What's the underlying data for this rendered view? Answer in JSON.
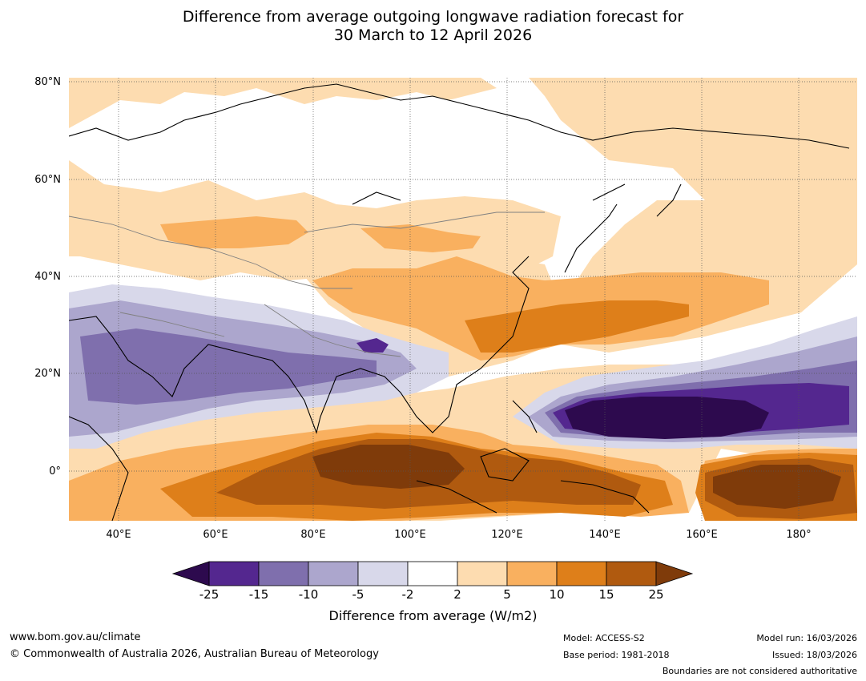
{
  "title": {
    "line1": "Difference from average outgoing longwave radiation forecast for",
    "line2": "30 March to 12 April 2026"
  },
  "map": {
    "lat_labels": [
      "80°N",
      "60°N",
      "40°N",
      "20°N",
      "0°"
    ],
    "lon_labels": [
      "40°E",
      "60°E",
      "80°E",
      "100°E",
      "120°E",
      "140°E",
      "160°E",
      "180°"
    ],
    "extent": {
      "lon_min": 30,
      "lon_max": 192,
      "lat_min": -10,
      "lat_max": 80
    }
  },
  "colorbar": {
    "title": "Difference from average (W/m2)",
    "ticks": [
      "-25",
      "-15",
      "-10",
      "-5",
      "-2",
      "2",
      "5",
      "10",
      "15",
      "25"
    ],
    "colors": {
      "lt_m25": "#2d0a4e",
      "m25_m15": "#54278f",
      "m15_m10": "#7f6fad",
      "m10_m5": "#aca6cd",
      "m5_m2": "#d8d8ea",
      "m2_2": "#ffffff",
      "p2_5": "#fddcb0",
      "p5_10": "#f9b05f",
      "p10_15": "#de7f1a",
      "p15_25": "#b05a0f",
      "gt_25": "#7f3b0a"
    }
  },
  "footer": {
    "website": "www.bom.gov.au/climate",
    "copyright": "© Commonwealth of Australia 2026, Australian Bureau of Meteorology",
    "model": "Model: ACCESS-S2",
    "base_period": "Base period: 1981-2018",
    "model_run": "Model run: 16/03/2026",
    "issued": "Issued: 18/03/2026",
    "disclaimer": "Boundaries are not considered authoritative"
  }
}
